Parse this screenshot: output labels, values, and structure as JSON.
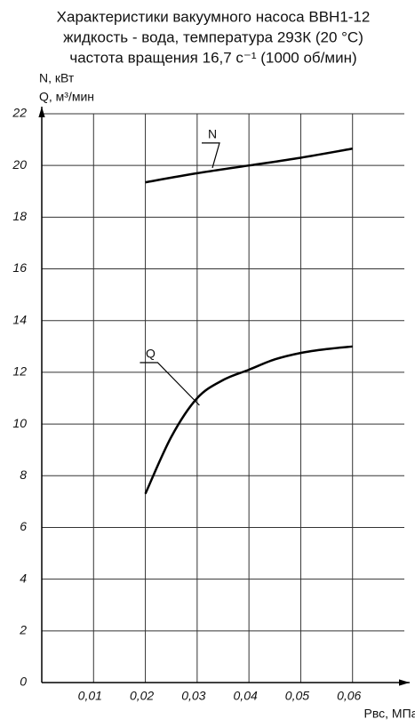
{
  "chart_data": {
    "type": "line",
    "title": [
      "Характеристики вакуумного насоса ВВН1-12",
      "жидкость - вода, температура 293К (20 °С)",
      "частота вращения 16,7 с⁻¹ (1000 об/мин)"
    ],
    "y_axis_labels": [
      "N, кВт",
      "Q, м³/мин"
    ],
    "x_axis_label": "Pвс, МПа",
    "xlim": [
      0,
      0.07
    ],
    "xticks": [
      {
        "value": 0.01,
        "label": "0,01"
      },
      {
        "value": 0.02,
        "label": "0,02"
      },
      {
        "value": 0.03,
        "label": "0,03"
      },
      {
        "value": 0.04,
        "label": "0,04"
      },
      {
        "value": 0.05,
        "label": "0,05"
      },
      {
        "value": 0.06,
        "label": "0,06"
      }
    ],
    "ylim": [
      0,
      22
    ],
    "yticks": [
      0,
      2,
      4,
      6,
      8,
      10,
      12,
      14,
      16,
      18,
      20,
      22
    ],
    "grid": true,
    "series": [
      {
        "name": "N",
        "color": "#000000",
        "x": [
          0.02,
          0.03,
          0.04,
          0.05,
          0.06
        ],
        "values": [
          19.35,
          19.7,
          20.0,
          20.3,
          20.65
        ]
      },
      {
        "name": "Q",
        "color": "#000000",
        "x": [
          0.02,
          0.025,
          0.03,
          0.035,
          0.04,
          0.045,
          0.05,
          0.055,
          0.06
        ],
        "values": [
          7.3,
          9.5,
          11.0,
          11.7,
          12.1,
          12.5,
          12.75,
          12.9,
          13.0
        ]
      }
    ]
  }
}
